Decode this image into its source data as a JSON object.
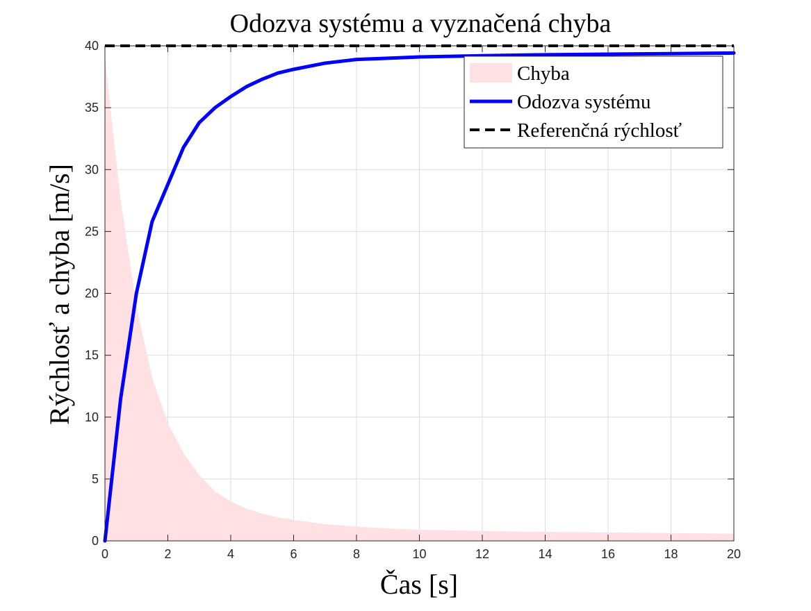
{
  "chart_data": {
    "type": "line",
    "title": "Odozva systému a vyznačená chyba",
    "xlabel": "Čas [s]",
    "ylabel": "Rýchlosť a chyba [m/s]",
    "xlim": [
      0,
      20
    ],
    "ylim": [
      0,
      40
    ],
    "xticks": [
      0,
      2,
      4,
      6,
      8,
      10,
      12,
      14,
      16,
      18,
      20
    ],
    "yticks": [
      0,
      5,
      10,
      15,
      20,
      25,
      30,
      35,
      40
    ],
    "grid": true,
    "legend_position": "top-right",
    "series": [
      {
        "name": "Chyba",
        "style": "area",
        "color": "#ffe0e3",
        "x": [
          0,
          0.5,
          1,
          1.5,
          2,
          2.5,
          3,
          3.5,
          4,
          4.5,
          5,
          5.5,
          6,
          7,
          8,
          9,
          10,
          12,
          14,
          16,
          18,
          20
        ],
        "y": [
          39,
          27.5,
          19.0,
          13.2,
          9.5,
          7.1,
          5.3,
          4.0,
          3.2,
          2.6,
          2.2,
          1.9,
          1.7,
          1.35,
          1.15,
          1.0,
          0.9,
          0.8,
          0.73,
          0.68,
          0.63,
          0.58
        ]
      },
      {
        "name": "Odozva systému",
        "style": "solid",
        "color": "#0000ff",
        "x": [
          0,
          0.5,
          1,
          1.5,
          2,
          2.5,
          3,
          3.5,
          4,
          4.5,
          5,
          5.5,
          6,
          7,
          8,
          9,
          10,
          12,
          14,
          16,
          18,
          20
        ],
        "y": [
          0,
          11.5,
          20.0,
          25.8,
          28.8,
          31.8,
          33.8,
          35.0,
          35.9,
          36.7,
          37.3,
          37.8,
          38.1,
          38.6,
          38.9,
          39.0,
          39.1,
          39.2,
          39.28,
          39.33,
          39.37,
          39.42
        ]
      },
      {
        "name": "Referenčná rýchlosť",
        "style": "dashed",
        "color": "#000000",
        "x": [
          0,
          20
        ],
        "y": [
          40,
          40
        ]
      }
    ]
  }
}
